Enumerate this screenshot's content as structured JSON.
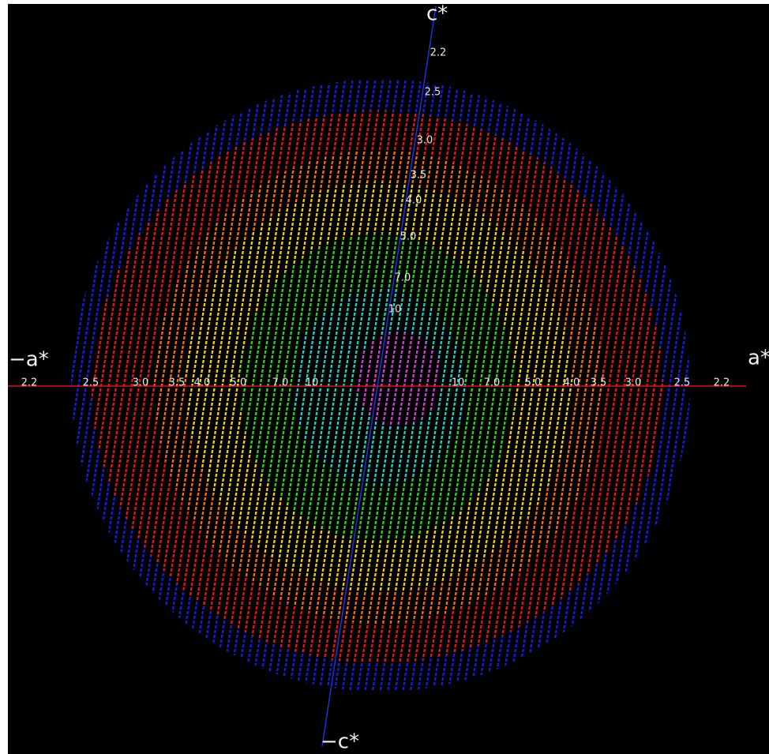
{
  "axes": {
    "a_star": "a*",
    "neg_a_star": "−a*",
    "c_star": "c*",
    "neg_c_star": "−c*"
  },
  "a_axis_labels": {
    "left": [
      "2.2",
      "2.5",
      "3.0",
      "3.5",
      "4.0",
      "5.0",
      "7.0",
      "10"
    ],
    "right": [
      "10",
      "7.0",
      "5.0",
      "4.0",
      "3.5",
      "3.0",
      "2.5",
      "2.2"
    ]
  },
  "c_axis_labels": [
    "2.2",
    "2.5",
    "3.0",
    "3.5",
    "4.0",
    "5.0",
    "7.0",
    "10"
  ]
}
